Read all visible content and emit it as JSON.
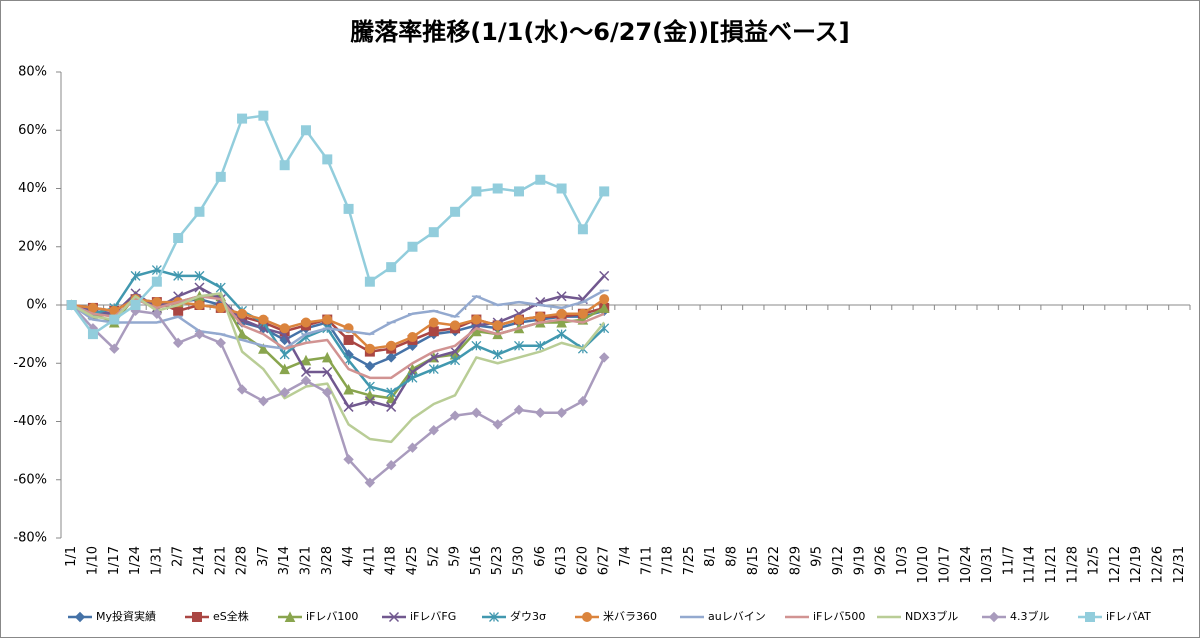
{
  "chart_data": {
    "type": "line",
    "title": "騰落率推移(1/1(水)～6/27(金))[損益ベース]",
    "categories": [
      "1/1",
      "1/10",
      "1/17",
      "1/24",
      "1/31",
      "2/7",
      "2/14",
      "2/21",
      "2/28",
      "3/7",
      "3/14",
      "3/21",
      "3/28",
      "4/4",
      "4/11",
      "4/18",
      "4/25",
      "5/2",
      "5/9",
      "5/16",
      "5/23",
      "5/30",
      "6/6",
      "6/13",
      "6/20",
      "6/27",
      "7/4",
      "7/11",
      "7/18",
      "7/25",
      "8/1",
      "8/8",
      "8/15",
      "8/22",
      "8/29",
      "9/5",
      "9/12",
      "9/19",
      "9/26",
      "10/3",
      "10/10",
      "10/17",
      "10/24",
      "10/31",
      "11/7",
      "11/14",
      "11/21",
      "11/28",
      "12/5",
      "12/12",
      "12/19",
      "12/26",
      "12/31"
    ],
    "ylim": [
      -80,
      80
    ],
    "yticks": [
      {
        "value": -80,
        "label": "-80%"
      },
      {
        "value": -60,
        "label": "-60%"
      },
      {
        "value": -40,
        "label": "-40%"
      },
      {
        "value": -20,
        "label": "-20%"
      },
      {
        "value": 0,
        "label": "0%"
      },
      {
        "value": 20,
        "label": "20%"
      },
      {
        "value": 40,
        "label": "40%"
      },
      {
        "value": 60,
        "label": "60%"
      },
      {
        "value": 80,
        "label": "80%"
      }
    ],
    "grid": false,
    "legend": "bottom",
    "series": [
      {
        "name": "My投資実績",
        "color": "#4572A7",
        "marker": "diamond",
        "values": [
          0,
          -2,
          -4,
          2,
          0,
          1,
          2,
          0,
          -6,
          -8,
          -12,
          -8,
          -6,
          -17,
          -21,
          -18,
          -14,
          -10,
          -9,
          -7,
          -8,
          -6,
          -5,
          -4,
          -4,
          -2,
          null,
          null,
          null,
          null,
          null,
          null,
          null,
          null,
          null,
          null,
          null,
          null,
          null,
          null,
          null,
          null,
          null,
          null,
          null,
          null,
          null,
          null,
          null,
          null,
          null,
          null,
          null
        ]
      },
      {
        "name": "eS全株",
        "color": "#AA4643",
        "marker": "square",
        "values": [
          0,
          -1,
          -2,
          2,
          1,
          -2,
          0,
          -1,
          -4,
          -6,
          -9,
          -7,
          -5,
          -12,
          -16,
          -15,
          -12,
          -9,
          -8,
          -5,
          -7,
          -5,
          -4,
          -4,
          -3,
          -1,
          null,
          null,
          null,
          null,
          null,
          null,
          null,
          null,
          null,
          null,
          null,
          null,
          null,
          null,
          null,
          null,
          null,
          null,
          null,
          null,
          null,
          null,
          null,
          null,
          null,
          null,
          null
        ]
      },
      {
        "name": "iFレバ100",
        "color": "#89A54E",
        "marker": "triangle",
        "values": [
          0,
          -3,
          -6,
          3,
          -1,
          1,
          3,
          3,
          -10,
          -15,
          -22,
          -19,
          -18,
          -29,
          -31,
          -32,
          -22,
          -18,
          -17,
          -9,
          -10,
          -8,
          -6,
          -6,
          -5,
          -1,
          null,
          null,
          null,
          null,
          null,
          null,
          null,
          null,
          null,
          null,
          null,
          null,
          null,
          null,
          null,
          null,
          null,
          null,
          null,
          null,
          null,
          null,
          null,
          null,
          null,
          null,
          null
        ]
      },
      {
        "name": "iFレバFG",
        "color": "#71588F",
        "marker": "x",
        "values": [
          0,
          -2,
          -3,
          4,
          -1,
          3,
          6,
          2,
          -5,
          -8,
          -10,
          -23,
          -23,
          -35,
          -33,
          -35,
          -23,
          -18,
          -16,
          -7,
          -6,
          -3,
          1,
          3,
          2,
          10,
          null,
          null,
          null,
          null,
          null,
          null,
          null,
          null,
          null,
          null,
          null,
          null,
          null,
          null,
          null,
          null,
          null,
          null,
          null,
          null,
          null,
          null,
          null,
          null,
          null,
          null,
          null
        ]
      },
      {
        "name": "ダウ3σ",
        "color": "#4198AF",
        "marker": "star",
        "values": [
          0,
          -3,
          -1,
          10,
          12,
          10,
          10,
          6,
          -2,
          -6,
          -17,
          -11,
          -8,
          -19,
          -28,
          -30,
          -25,
          -22,
          -19,
          -14,
          -17,
          -14,
          -14,
          -10,
          -15,
          -8,
          null,
          null,
          null,
          null,
          null,
          null,
          null,
          null,
          null,
          null,
          null,
          null,
          null,
          null,
          null,
          null,
          null,
          null,
          null,
          null,
          null,
          null,
          null,
          null,
          null,
          null,
          null
        ]
      },
      {
        "name": "米バラ360",
        "color": "#DB843D",
        "marker": "circle",
        "values": [
          0,
          -1,
          -2,
          2,
          1,
          1,
          0,
          -1,
          -3,
          -5,
          -8,
          -6,
          -5,
          -8,
          -15,
          -14,
          -11,
          -6,
          -7,
          -5,
          -7,
          -5,
          -4,
          -3,
          -3,
          2,
          null,
          null,
          null,
          null,
          null,
          null,
          null,
          null,
          null,
          null,
          null,
          null,
          null,
          null,
          null,
          null,
          null,
          null,
          null,
          null,
          null,
          null,
          null,
          null,
          null,
          null,
          null
        ]
      },
      {
        "name": "auレバイン",
        "color": "#93A9CF",
        "marker": "plus",
        "values": [
          0,
          -5,
          -6,
          -6,
          -6,
          -4,
          -9,
          -10,
          -12,
          -14,
          -15,
          -10,
          -8,
          -9,
          -10,
          -6,
          -3,
          -2,
          -4,
          3,
          0,
          1,
          0,
          -1,
          1,
          5,
          null,
          null,
          null,
          null,
          null,
          null,
          null,
          null,
          null,
          null,
          null,
          null,
          null,
          null,
          null,
          null,
          null,
          null,
          null,
          null,
          null,
          null,
          null,
          null,
          null,
          null,
          null
        ]
      },
      {
        "name": "iFレバ500",
        "color": "#D19392",
        "marker": "none",
        "values": [
          0,
          -3,
          -4,
          2,
          -1,
          1,
          3,
          2,
          -7,
          -10,
          -15,
          -13,
          -12,
          -22,
          -25,
          -25,
          -20,
          -16,
          -14,
          -8,
          -10,
          -8,
          -6,
          -5,
          -6,
          -3,
          null,
          null,
          null,
          null,
          null,
          null,
          null,
          null,
          null,
          null,
          null,
          null,
          null,
          null,
          null,
          null,
          null,
          null,
          null,
          null,
          null,
          null,
          null,
          null,
          null,
          null,
          null
        ]
      },
      {
        "name": "NDX3ブル",
        "color": "#B9CD96",
        "marker": "none",
        "values": [
          0,
          -4,
          -5,
          3,
          -2,
          0,
          3,
          4,
          -16,
          -22,
          -32,
          -28,
          -27,
          -41,
          -46,
          -47,
          -39,
          -34,
          -31,
          -18,
          -20,
          -18,
          -16,
          -13,
          -15,
          -6,
          null,
          null,
          null,
          null,
          null,
          null,
          null,
          null,
          null,
          null,
          null,
          null,
          null,
          null,
          null,
          null,
          null,
          null,
          null,
          null,
          null,
          null,
          null,
          null,
          null,
          null,
          null
        ]
      },
      {
        "name": "4.3ブル",
        "color": "#A99BBD",
        "marker": "diamond",
        "values": [
          0,
          -8,
          -15,
          -2,
          -3,
          -13,
          -10,
          -13,
          -29,
          -33,
          -30,
          -26,
          -30,
          -53,
          -61,
          -55,
          -49,
          -43,
          -38,
          -37,
          -41,
          -36,
          -37,
          -37,
          -33,
          -18,
          null,
          null,
          null,
          null,
          null,
          null,
          null,
          null,
          null,
          null,
          null,
          null,
          null,
          null,
          null,
          null,
          null,
          null,
          null,
          null,
          null,
          null,
          null,
          null,
          null,
          null,
          null
        ]
      },
      {
        "name": "iFレバAT",
        "color": "#92CDDC",
        "marker": "square",
        "values": [
          0,
          -10,
          -5,
          0,
          8,
          23,
          32,
          44,
          64,
          65,
          48,
          60,
          50,
          33,
          8,
          13,
          20,
          25,
          32,
          39,
          40,
          39,
          43,
          40,
          26,
          39,
          null,
          null,
          null,
          null,
          null,
          null,
          null,
          null,
          null,
          null,
          null,
          null,
          null,
          null,
          null,
          null,
          null,
          null,
          null,
          null,
          null,
          null,
          null,
          null,
          null,
          null,
          null
        ]
      }
    ]
  }
}
